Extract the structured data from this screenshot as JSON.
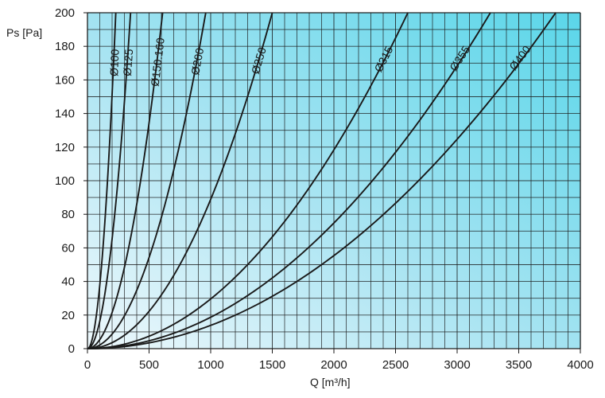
{
  "chart_data": {
    "type": "line",
    "xlabel": "Q [m³/h]",
    "ylabel": "Ps [Pa]",
    "xlim": [
      0,
      4000
    ],
    "ylim": [
      0,
      200
    ],
    "x_ticks": [
      "0",
      "500",
      "1000",
      "1500",
      "2000",
      "2500",
      "3000",
      "3500",
      "4000"
    ],
    "y_ticks": [
      "0",
      "20",
      "40",
      "60",
      "80",
      "100",
      "120",
      "140",
      "160",
      "180",
      "200"
    ],
    "grid": true,
    "colors": {
      "bg_top_right": "#5fd8ea",
      "bg_bottom_left": "#e9f6fb",
      "grid": "#1a1a1a",
      "curve": "#1a1a1a"
    },
    "series": [
      {
        "name": "Ø100",
        "x": [
          0,
          50,
          100,
          150,
          200,
          230
        ],
        "y": [
          0,
          9.5,
          38,
          85,
          151,
          200
        ]
      },
      {
        "name": "Ø125",
        "x": [
          0,
          75,
          150,
          225,
          300,
          350
        ],
        "y": [
          0,
          9.2,
          36.7,
          82.7,
          146.9,
          200
        ]
      },
      {
        "name": "Ø150.160",
        "x": [
          0,
          125,
          250,
          375,
          500,
          610
        ],
        "y": [
          0,
          8.4,
          33.6,
          75.6,
          134.4,
          200
        ]
      },
      {
        "name": "Ø200",
        "x": [
          0,
          200,
          400,
          600,
          800,
          960
        ],
        "y": [
          0,
          8.7,
          34.7,
          78.1,
          138.9,
          200
        ]
      },
      {
        "name": "Ø250",
        "x": [
          0,
          300,
          600,
          900,
          1200,
          1500
        ],
        "y": [
          0,
          8,
          32,
          72,
          128,
          200
        ]
      },
      {
        "name": "Ø315",
        "x": [
          0,
          500,
          1000,
          1500,
          2000,
          2600
        ],
        "y": [
          0,
          7.4,
          29.6,
          66.6,
          118.3,
          200
        ]
      },
      {
        "name": "Ø355",
        "x": [
          0,
          600,
          1200,
          1800,
          2400,
          3270
        ],
        "y": [
          0,
          6.7,
          26.9,
          60.6,
          107.7,
          200
        ]
      },
      {
        "name": "Ø400",
        "x": [
          0,
          700,
          1400,
          2100,
          2800,
          3800
        ],
        "y": [
          0,
          6.8,
          27.1,
          61.1,
          108.6,
          200
        ]
      }
    ]
  }
}
